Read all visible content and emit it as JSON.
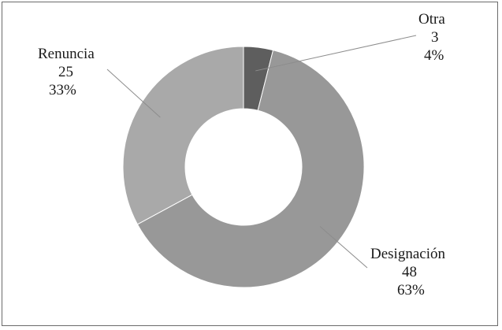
{
  "chart_data": {
    "type": "pie",
    "style": "donut",
    "title": "",
    "start_angle_deg": 0,
    "slices": [
      {
        "name": "Otra",
        "value": 3,
        "percent": "4%",
        "color": "#5e5e5e"
      },
      {
        "name": "Designación",
        "value": 48,
        "percent": "63%",
        "color": "#989898"
      },
      {
        "name": "Renuncia",
        "value": 25,
        "percent": "33%",
        "color": "#a9a9a9"
      }
    ]
  }
}
